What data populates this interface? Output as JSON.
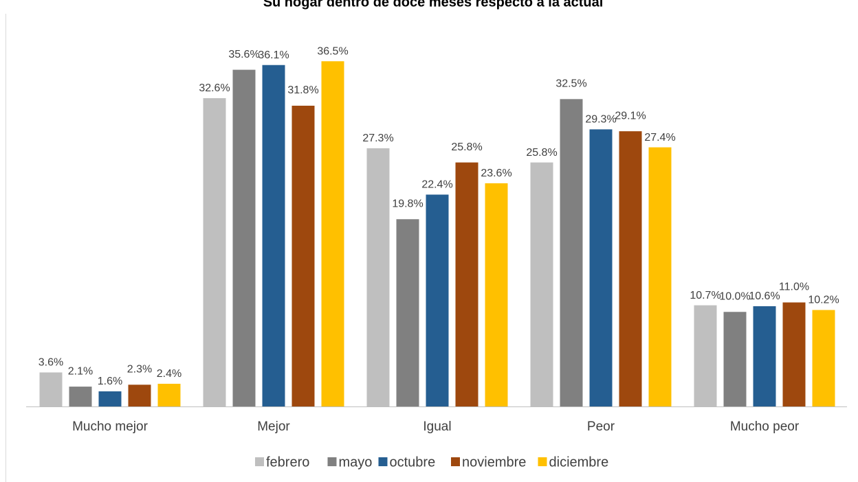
{
  "chart_data": {
    "type": "bar",
    "title": "Su hogar dentro de doce meses respecto a la actual",
    "categories": [
      "Mucho mejor",
      "Mejor",
      "Igual",
      "Peor",
      "Mucho peor"
    ],
    "series": [
      {
        "name": "febrero",
        "color": "#bfbfbf",
        "values": [
          3.6,
          32.6,
          27.3,
          25.8,
          10.7
        ],
        "value_labels": [
          "3.6%",
          "32.6%",
          "27.3%",
          "25.8%",
          "10.7%"
        ]
      },
      {
        "name": "mayo",
        "color": "#808080",
        "values": [
          2.1,
          35.6,
          19.8,
          32.5,
          10.0
        ],
        "value_labels": [
          "2.1%",
          "35.6%",
          "19.8%",
          "32.5%",
          "10.0%"
        ]
      },
      {
        "name": "octubre",
        "color": "#255e91",
        "values": [
          1.6,
          36.1,
          22.4,
          29.3,
          10.6
        ],
        "value_labels": [
          "1.6%",
          "36.1%",
          "22.4%",
          "29.3%",
          "10.6%"
        ]
      },
      {
        "name": "noviembre",
        "color": "#9e480e",
        "values": [
          2.3,
          31.8,
          25.8,
          29.1,
          11.0
        ],
        "value_labels": [
          "2.3%",
          "31.8%",
          "25.8%",
          "29.1%",
          "11.0%"
        ]
      },
      {
        "name": "diciembre",
        "color": "#ffc000",
        "values": [
          2.4,
          36.5,
          23.6,
          27.4,
          10.2
        ],
        "value_labels": [
          "2.4%",
          "36.5%",
          "23.6%",
          "27.4%",
          "10.2%"
        ]
      }
    ],
    "ylim": [
      0,
      40
    ],
    "legend": "bottom"
  }
}
